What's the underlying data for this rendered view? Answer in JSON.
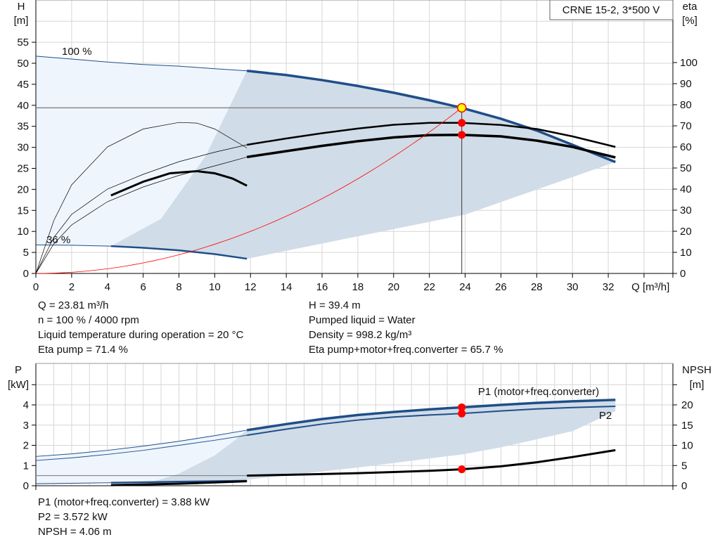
{
  "chart_data": [
    {
      "type": "line",
      "title": "CRNE 15-2, 3*500 V",
      "xlabel": "Q [m³/h]",
      "ylabel_left": [
        "H",
        "[m]"
      ],
      "ylabel_right": [
        "eta",
        "[%]"
      ],
      "xlim": [
        0,
        35.6
      ],
      "ylim_left": [
        0,
        60
      ],
      "ylim_right": [
        0,
        120
      ],
      "x_ticks": [
        "0",
        "2",
        "4",
        "6",
        "8",
        "10",
        "12",
        "14",
        "16",
        "18",
        "20",
        "22",
        "24",
        "26",
        "28",
        "30",
        "32"
      ],
      "y_left_ticks": [
        "0",
        "5",
        "10",
        "15",
        "20",
        "25",
        "30",
        "35",
        "40",
        "45",
        "50",
        "55"
      ],
      "y_right_ticks": [
        "0",
        "10",
        "20",
        "30",
        "40",
        "50",
        "60",
        "70",
        "80",
        "90",
        "100"
      ],
      "grid": true,
      "annotations": [
        "100 %",
        "36 %"
      ],
      "series": [
        {
          "axis": "left",
          "color": "#1f4e89",
          "points": [
            [
              0,
              51.7
            ],
            [
              2,
              51
            ],
            [
              4,
              50.3
            ],
            [
              6,
              49.7
            ],
            [
              8,
              49.3
            ],
            [
              10,
              48.7
            ],
            [
              11.8,
              48.2
            ],
            [
              14,
              47.2
            ],
            [
              16,
              46
            ],
            [
              18,
              44.6
            ],
            [
              20,
              43
            ],
            [
              22,
              41.2
            ],
            [
              23.81,
              39.4
            ],
            [
              26,
              36.8
            ],
            [
              28,
              34
            ],
            [
              30,
              30.6
            ],
            [
              32.4,
              26.5
            ]
          ]
        },
        {
          "axis": "left",
          "color": "#1f4e89",
          "points": [
            [
              0,
              6.8
            ],
            [
              2,
              6.7
            ],
            [
              4.2,
              6.5
            ],
            [
              6,
              6.1
            ],
            [
              8,
              5.5
            ],
            [
              10,
              4.6
            ],
            [
              11.8,
              3.5
            ]
          ]
        },
        {
          "axis": "right",
          "color": "#000000",
          "points": [
            [
              0,
              0
            ],
            [
              1,
              17
            ],
            [
              2,
              28
            ],
            [
              4,
              40
            ],
            [
              6,
              47
            ],
            [
              8,
              53
            ],
            [
              10,
              57.5
            ],
            [
              11.8,
              61
            ],
            [
              14,
              64
            ],
            [
              16,
              66.5
            ],
            [
              18,
              68.7
            ],
            [
              20,
              70.5
            ],
            [
              22,
              71.4
            ],
            [
              23.81,
              71.4
            ],
            [
              26,
              70.4
            ],
            [
              28,
              68.5
            ],
            [
              30,
              65
            ],
            [
              32.4,
              60
            ]
          ]
        },
        {
          "axis": "right",
          "color": "#000000",
          "points": [
            [
              0,
              0
            ],
            [
              1,
              14
            ],
            [
              2,
              23
            ],
            [
              4,
              34
            ],
            [
              6,
              41
            ],
            [
              8,
              46.5
            ],
            [
              10,
              51
            ],
            [
              11.8,
              55.2
            ],
            [
              14,
              58
            ],
            [
              16,
              60.5
            ],
            [
              18,
              62.7
            ],
            [
              20,
              64.5
            ],
            [
              22,
              65.6
            ],
            [
              23.81,
              65.7
            ],
            [
              26,
              65
            ],
            [
              28,
              63
            ],
            [
              30,
              60
            ],
            [
              32.4,
              55
            ]
          ]
        },
        {
          "axis": "right",
          "color": "#000000",
          "points": [
            [
              0,
              0
            ],
            [
              1,
              25
            ],
            [
              2,
              42
            ],
            [
              4,
              60
            ],
            [
              6,
              68.5
            ],
            [
              8,
              71.6
            ],
            [
              9,
              71.3
            ],
            [
              10,
              68.5
            ],
            [
              11.8,
              59.5
            ]
          ]
        },
        {
          "axis": "right",
          "color": "#000000",
          "points": [
            [
              4.2,
              37
            ],
            [
              6,
              43.5
            ],
            [
              7.5,
              47.5
            ],
            [
              9,
              48.5
            ],
            [
              10,
              47.5
            ],
            [
              11,
              45
            ],
            [
              11.8,
              41.6
            ]
          ]
        },
        {
          "axis": "left",
          "color": "#ff0000",
          "points": "system curve H = 39.4·(Q/23.81)²"
        }
      ],
      "duty_point": {
        "Q": 23.81,
        "H": 39.4,
        "eta_pump": 71.4,
        "eta_total": 65.7
      }
    },
    {
      "type": "line",
      "xlim": [
        0,
        35.6
      ],
      "ylabel_left": [
        "P",
        "[kW]"
      ],
      "ylabel_right": [
        "NPSH",
        "[m]"
      ],
      "ylim_left": [
        0,
        6
      ],
      "ylim_right": [
        0,
        30
      ],
      "y_left_ticks": [
        "0",
        "1",
        "2",
        "3",
        "4"
      ],
      "y_right_ticks": [
        "0",
        "5",
        "10",
        "15",
        "20"
      ],
      "grid": true,
      "series": [
        {
          "name": "P1 (motor+freq.converter)",
          "axis": "left",
          "color": "#1f4e89",
          "points": [
            [
              0,
              1.45
            ],
            [
              2,
              1.58
            ],
            [
              4,
              1.75
            ],
            [
              6,
              1.96
            ],
            [
              8,
              2.2
            ],
            [
              10,
              2.48
            ],
            [
              11.8,
              2.75
            ],
            [
              14,
              3.05
            ],
            [
              16,
              3.3
            ],
            [
              18,
              3.5
            ],
            [
              20,
              3.65
            ],
            [
              22,
              3.78
            ],
            [
              23.81,
              3.88
            ],
            [
              26,
              4.0
            ],
            [
              28,
              4.1
            ],
            [
              30,
              4.18
            ],
            [
              32.4,
              4.25
            ]
          ]
        },
        {
          "name": "P2",
          "axis": "left",
          "color": "#1f4e89",
          "points": [
            [
              0,
              1.25
            ],
            [
              2,
              1.38
            ],
            [
              4,
              1.55
            ],
            [
              6,
              1.75
            ],
            [
              8,
              2.0
            ],
            [
              10,
              2.25
            ],
            [
              11.8,
              2.5
            ],
            [
              14,
              2.8
            ],
            [
              16,
              3.05
            ],
            [
              18,
              3.25
            ],
            [
              20,
              3.4
            ],
            [
              22,
              3.5
            ],
            [
              23.81,
              3.572
            ],
            [
              26,
              3.7
            ],
            [
              28,
              3.8
            ],
            [
              30,
              3.87
            ],
            [
              32.4,
              3.93
            ]
          ]
        },
        {
          "axis": "right",
          "color": "#000000",
          "points": [
            [
              11.8,
              2.5
            ],
            [
              14,
              2.7
            ],
            [
              16,
              2.9
            ],
            [
              18,
              3.1
            ],
            [
              20,
              3.4
            ],
            [
              22,
              3.7
            ],
            [
              23.81,
              4.06
            ],
            [
              26,
              4.8
            ],
            [
              28,
              5.8
            ],
            [
              30,
              7.1
            ],
            [
              32.4,
              8.8
            ]
          ]
        },
        {
          "axis": "left",
          "color": "#1f4e89",
          "points": [
            [
              0,
              0.1
            ],
            [
              4.2,
              0.15
            ],
            [
              8,
              0.2
            ],
            [
              11.8,
              0.25
            ]
          ]
        },
        {
          "axis": "left",
          "color": "#000000",
          "points": [
            [
              4.2,
              0.03
            ],
            [
              8,
              0.1
            ],
            [
              11.8,
              0.22
            ]
          ]
        }
      ],
      "duty_point": {
        "Q": 23.81,
        "P1": 3.88,
        "P2": 3.572,
        "NPSH": 4.06
      }
    }
  ],
  "info_top_left": [
    "Q = 23.81 m³/h",
    "n = 100 % / 4000 rpm",
    "Liquid temperature during operation = 20 °C",
    "Eta pump = 71.4 %"
  ],
  "info_top_right": [
    "H = 39.4 m",
    "Pumped liquid = Water",
    "Density = 998.2 kg/m³",
    "Eta pump+motor+freq.converter = 65.7 %"
  ],
  "info_bottom": [
    "P1 (motor+freq.converter) = 3.88 kW",
    "P2 = 3.572 kW",
    "NPSH = 4.06 m"
  ],
  "colors": {
    "curve_blue": "#1f4e89",
    "area_dark": "#d0dce7",
    "area_light": "#eef5fd",
    "grid": "#d6d6d6",
    "duty_point": "#ffff00",
    "marker": "#ff0000"
  }
}
